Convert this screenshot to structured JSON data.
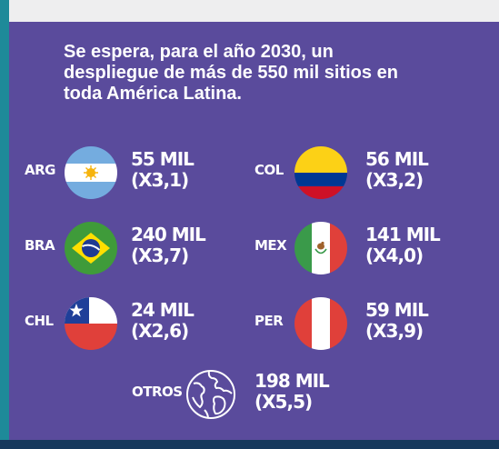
{
  "headline": "Se espera, para el año 2030, un despliegue de más de 550 mil sitios en toda América Latina.",
  "countries": [
    {
      "code": "ARG",
      "amount": "55 MIL",
      "growth": "(X3,1)",
      "flag": "argentina-flag-icon"
    },
    {
      "code": "COL",
      "amount": "56 MIL",
      "growth": "(X3,2)",
      "flag": "colombia-flag-icon"
    },
    {
      "code": "BRA",
      "amount": "240 MIL",
      "growth": "(X3,7)",
      "flag": "brazil-flag-icon"
    },
    {
      "code": "MEX",
      "amount": "141 MIL",
      "growth": "(X4,0)",
      "flag": "mexico-flag-icon"
    },
    {
      "code": "CHL",
      "amount": "24 MIL",
      "growth": "(X2,6)",
      "flag": "chile-flag-icon"
    },
    {
      "code": "PER",
      "amount": "59 MIL",
      "growth": "(X3,9)",
      "flag": "peru-flag-icon"
    }
  ],
  "others": {
    "code": "OTROS",
    "amount": "198 MIL",
    "growth": "(X5,5)",
    "icon": "globe-icon"
  },
  "colors": {
    "panel": "#5a4b9c",
    "left_accent": "#1e8a99",
    "bottom_bar": "#16385c",
    "text": "#ffffff"
  }
}
